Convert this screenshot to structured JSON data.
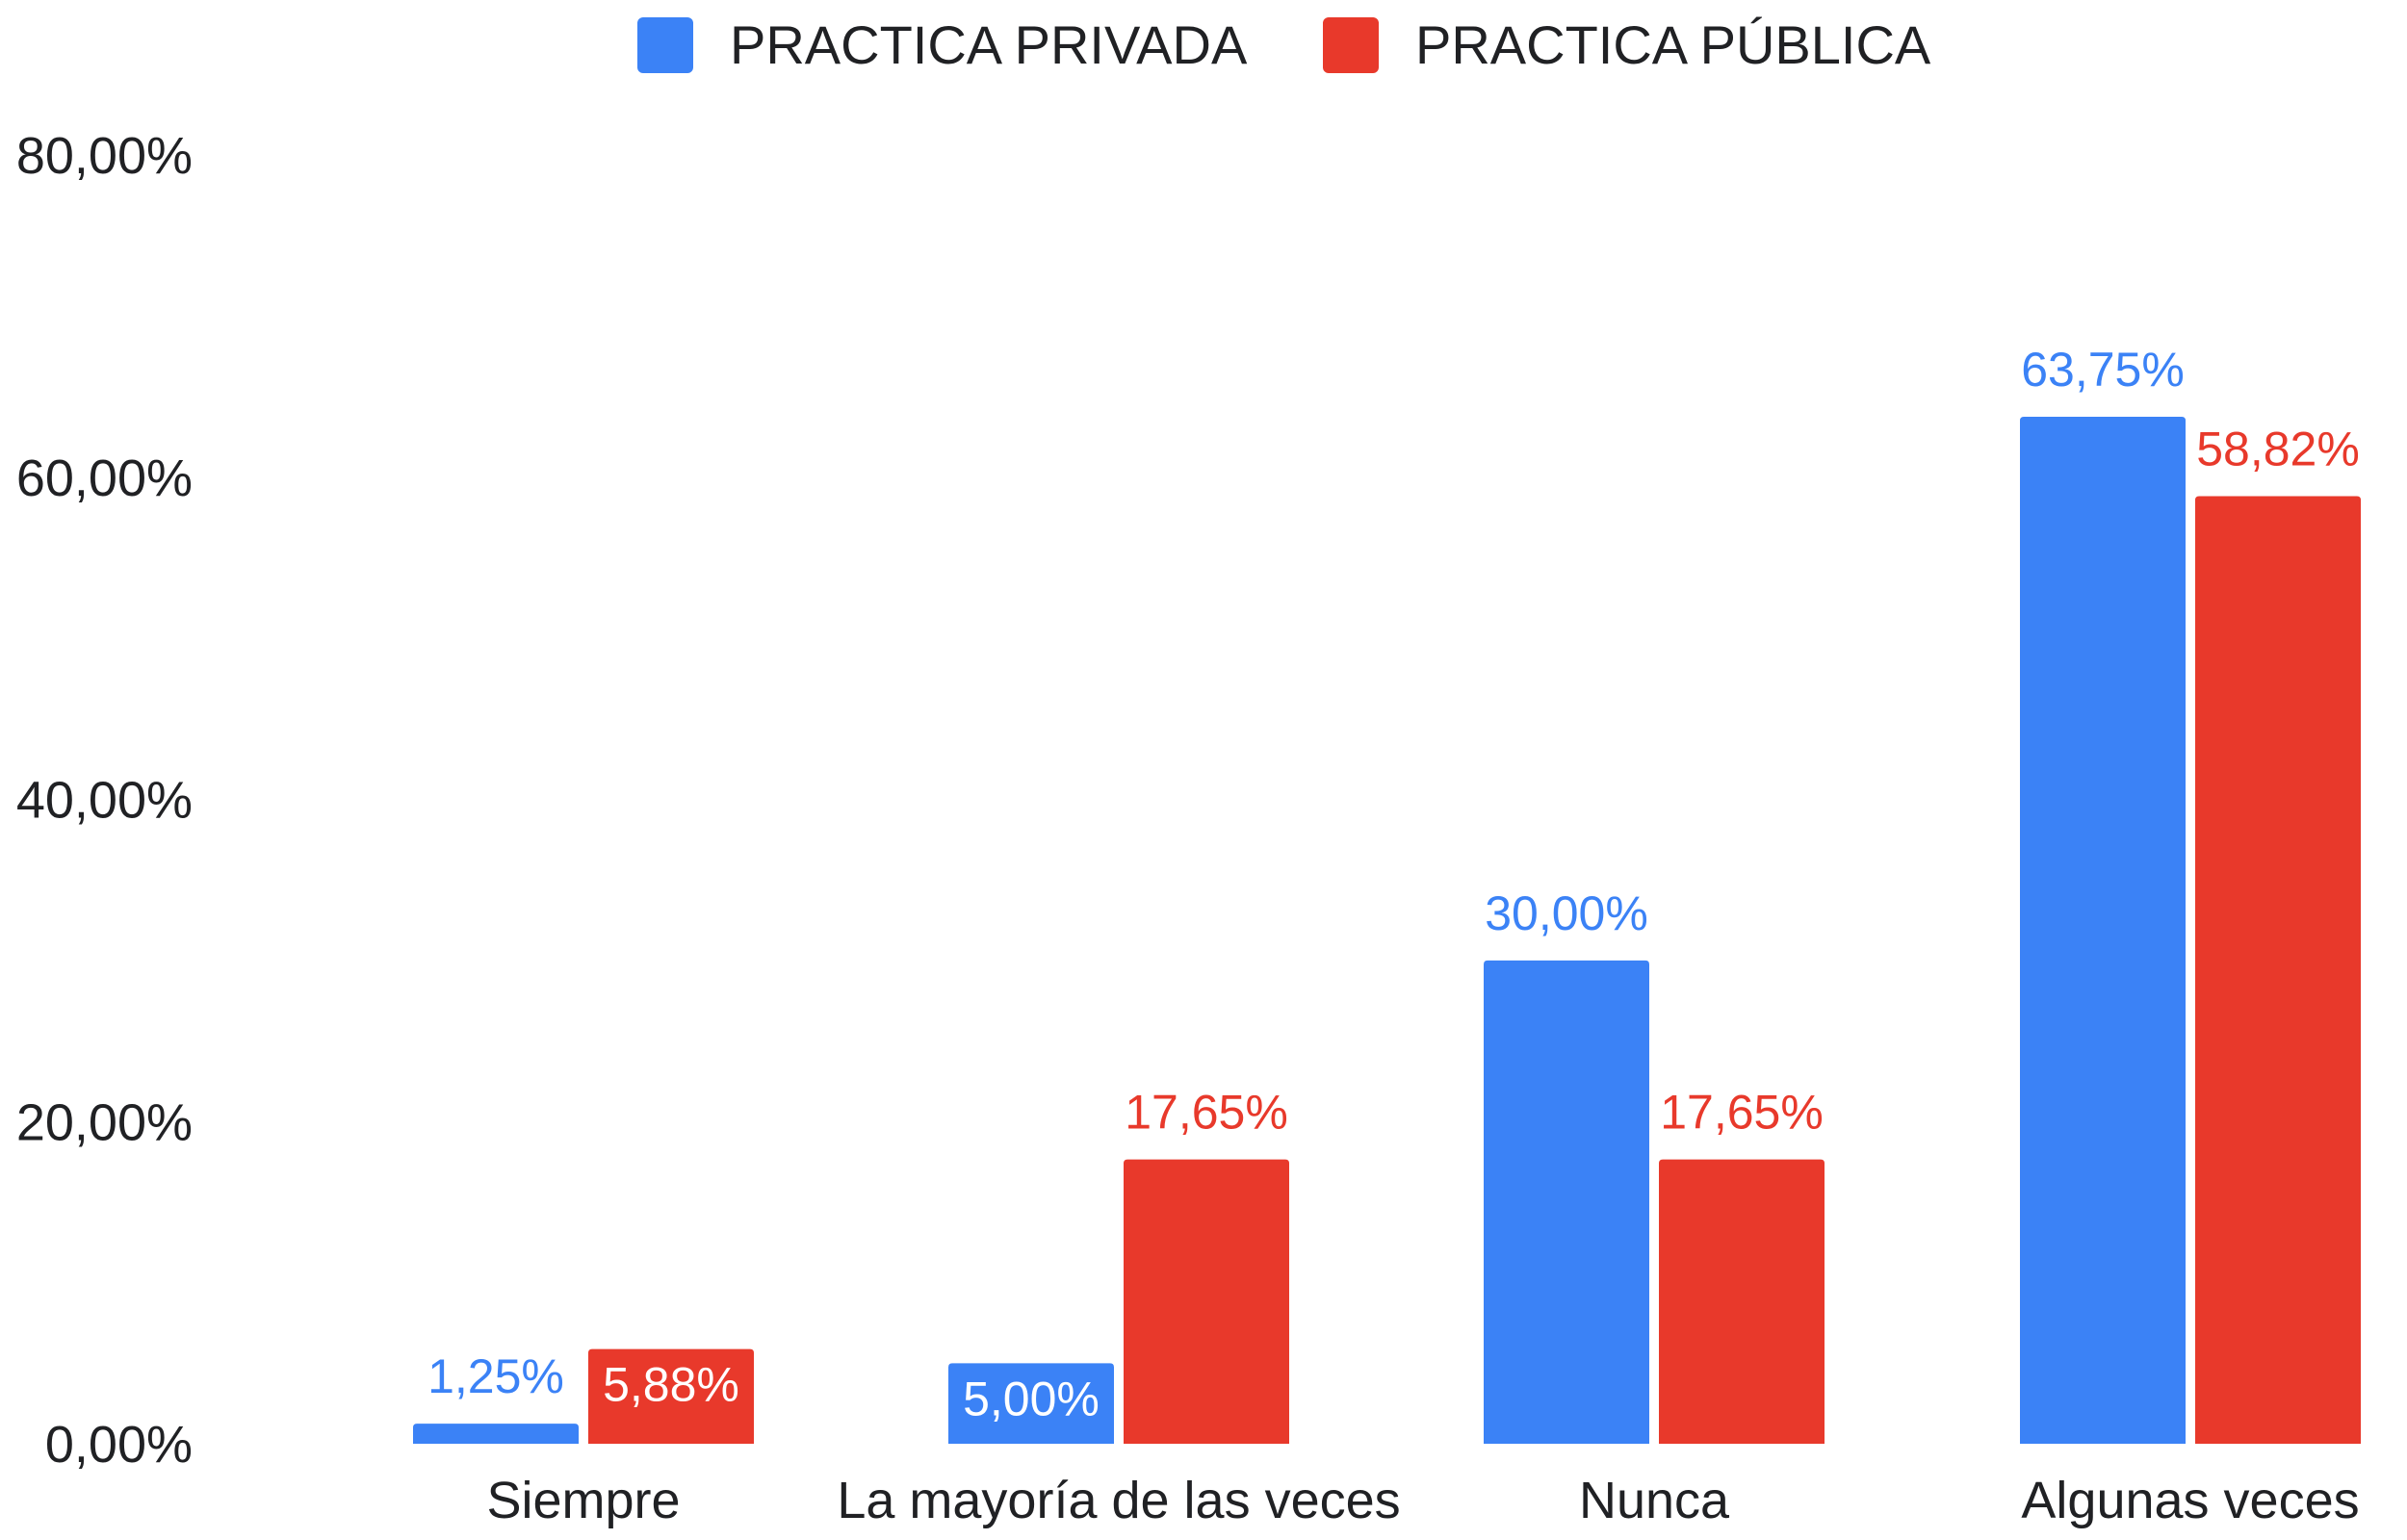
{
  "chart_data": {
    "type": "bar",
    "categories": [
      "Siempre",
      "La mayoría de las veces",
      "Nunca",
      "Algunas veces"
    ],
    "series": [
      {
        "name": "PRACTICA PRIVADA",
        "color": "#3b82f6",
        "values": [
          1.25,
          5.0,
          30.0,
          63.75
        ],
        "labels": [
          "1,25%",
          "5,00%",
          "30,00%",
          "63,75%"
        ]
      },
      {
        "name": "PRACTICA PÚBLICA",
        "color": "#e8392b",
        "values": [
          5.88,
          17.65,
          17.65,
          58.82
        ],
        "labels": [
          "5,88%",
          "17,65%",
          "17,65%",
          "58,82%"
        ]
      }
    ],
    "y_ticks": [
      0,
      20,
      40,
      60,
      80
    ],
    "y_tick_labels": [
      "0,00%",
      "20,00%",
      "40,00%",
      "60,00%",
      "80,00%"
    ],
    "ylim": [
      0,
      80
    ],
    "legend_position": "top-center",
    "grid": false
  }
}
